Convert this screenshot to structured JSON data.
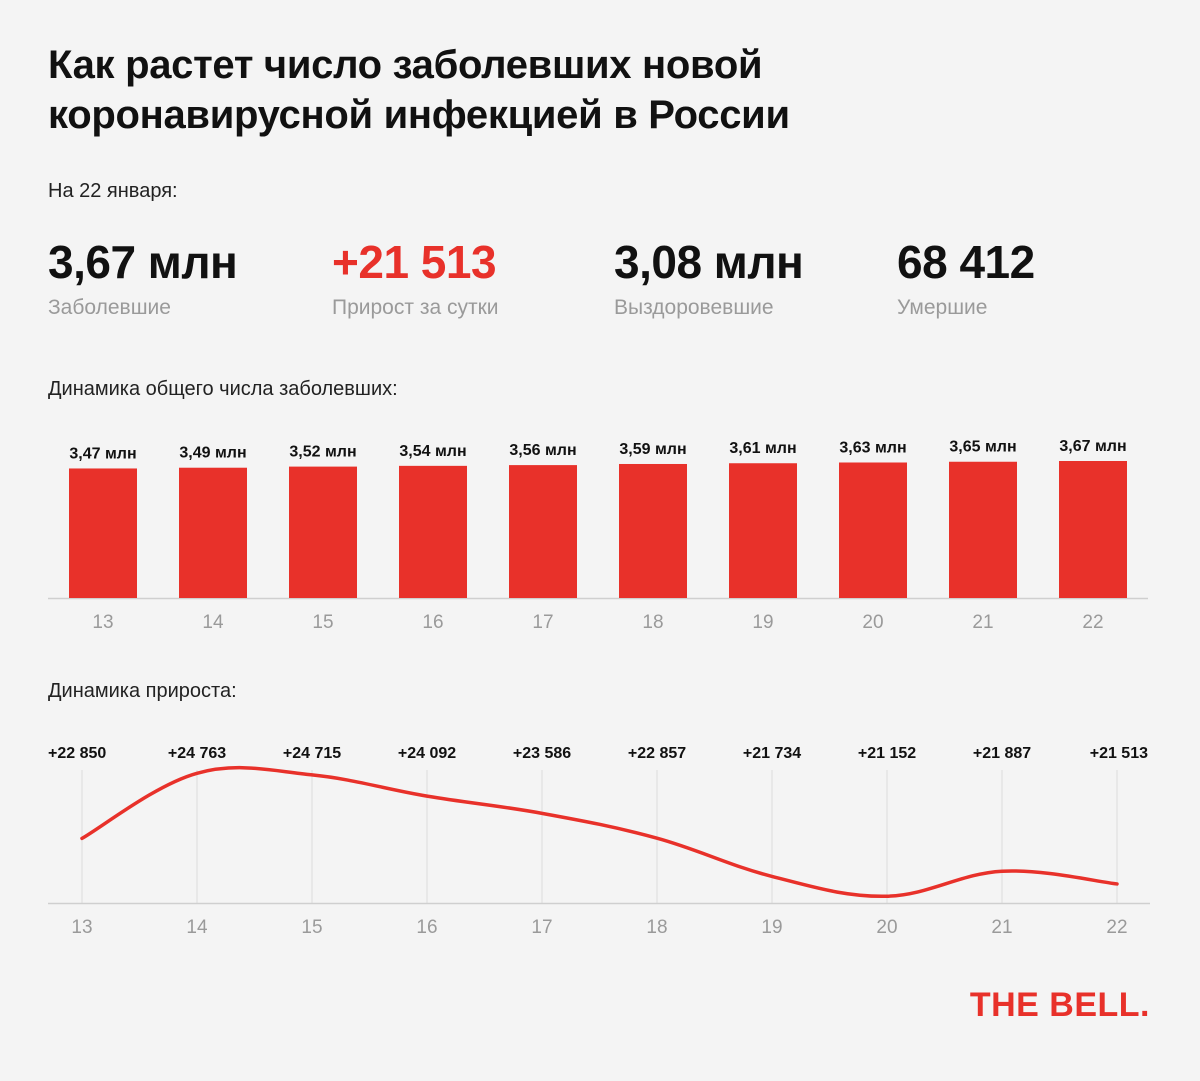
{
  "title": "Как растет число заболевших новой коронавирусной инфекцией в России",
  "as_of": "На 22 января:",
  "stats": [
    {
      "value": "3,67 млн",
      "label": "Заболевшие"
    },
    {
      "value": "+21 513",
      "label": "Прирост за сутки"
    },
    {
      "value": "3,08 млн",
      "label": "Выздоровевшие"
    },
    {
      "value": "68 412",
      "label": "Умершие"
    }
  ],
  "colors": {
    "accent": "#e8312a",
    "muted": "#9a9a9a",
    "grid": "#dddddd"
  },
  "chart_data": [
    {
      "type": "bar",
      "title": "Динамика общего числа заболевших:",
      "categories": [
        "13",
        "14",
        "15",
        "16",
        "17",
        "18",
        "19",
        "20",
        "21",
        "22"
      ],
      "values": [
        3.47,
        3.49,
        3.52,
        3.54,
        3.56,
        3.59,
        3.61,
        3.63,
        3.65,
        3.67
      ],
      "labels": [
        "3,47 млн",
        "3,49 млн",
        "3,52 млн",
        "3,54 млн",
        "3,56 млн",
        "3,59 млн",
        "3,61 млн",
        "3,63 млн",
        "3,65 млн",
        "3,67 млн"
      ],
      "ylim": [
        0,
        3.67
      ],
      "grid": false
    },
    {
      "type": "line",
      "title": "Динамика прироста:",
      "categories": [
        "13",
        "14",
        "15",
        "16",
        "17",
        "18",
        "19",
        "20",
        "21",
        "22"
      ],
      "values": [
        22850,
        24763,
        24715,
        24092,
        23586,
        22857,
        21734,
        21152,
        21887,
        21513
      ],
      "labels": [
        "+22 850",
        "+24 763",
        "+24 715",
        "+24 092",
        "+23 586",
        "+22 857",
        "+21 734",
        "+21 152",
        "+21 887",
        "+21 513"
      ],
      "ylim": [
        21100,
        24800
      ],
      "grid": true
    }
  ],
  "logo": "THE BELL."
}
